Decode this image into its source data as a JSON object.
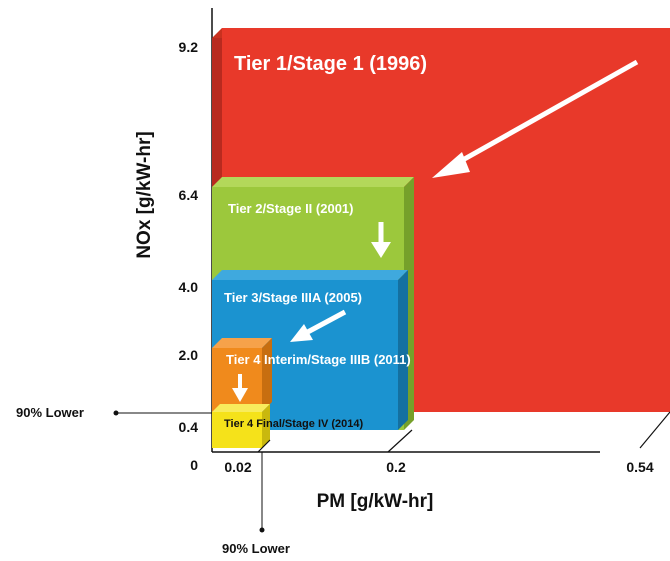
{
  "chart_data": {
    "type": "stacked-area-3d",
    "xlabel": "PM [g/kW-hr]",
    "ylabel": "NOx [g/kW-hr]",
    "x_ticks": [
      "0.02",
      "0.2",
      "0.54"
    ],
    "y_ticks": [
      "9.2",
      "6.4",
      "4.0",
      "2.0",
      "0.4"
    ],
    "origin_label": "0",
    "tiers": [
      {
        "name": "Tier 1/Stage 1 (1996)",
        "pm": 0.54,
        "nox": 9.2,
        "color": "#e8392a",
        "side": "#b82a1f"
      },
      {
        "name": "Tier 2/Stage II (2001)",
        "pm": 0.2,
        "nox": 6.4,
        "color": "#9cc83c",
        "side": "#76a02a"
      },
      {
        "name": "Tier 3/Stage IIIA (2005)",
        "pm": 0.2,
        "nox": 4.0,
        "color": "#1b93d0",
        "side": "#1470a0"
      },
      {
        "name": "Tier 4 Interim/Stage IIIB (2011)",
        "pm": 0.02,
        "nox": 2.0,
        "color": "#f08a1c",
        "side": "#c76e10"
      },
      {
        "name": "Tier 4 Final/Stage IV (2014)",
        "pm": 0.02,
        "nox": 0.4,
        "color": "#f5e21a",
        "side": "#c9b80e"
      }
    ],
    "annotations": {
      "y_reduction": "90% Lower",
      "x_reduction": "90% Lower"
    }
  }
}
